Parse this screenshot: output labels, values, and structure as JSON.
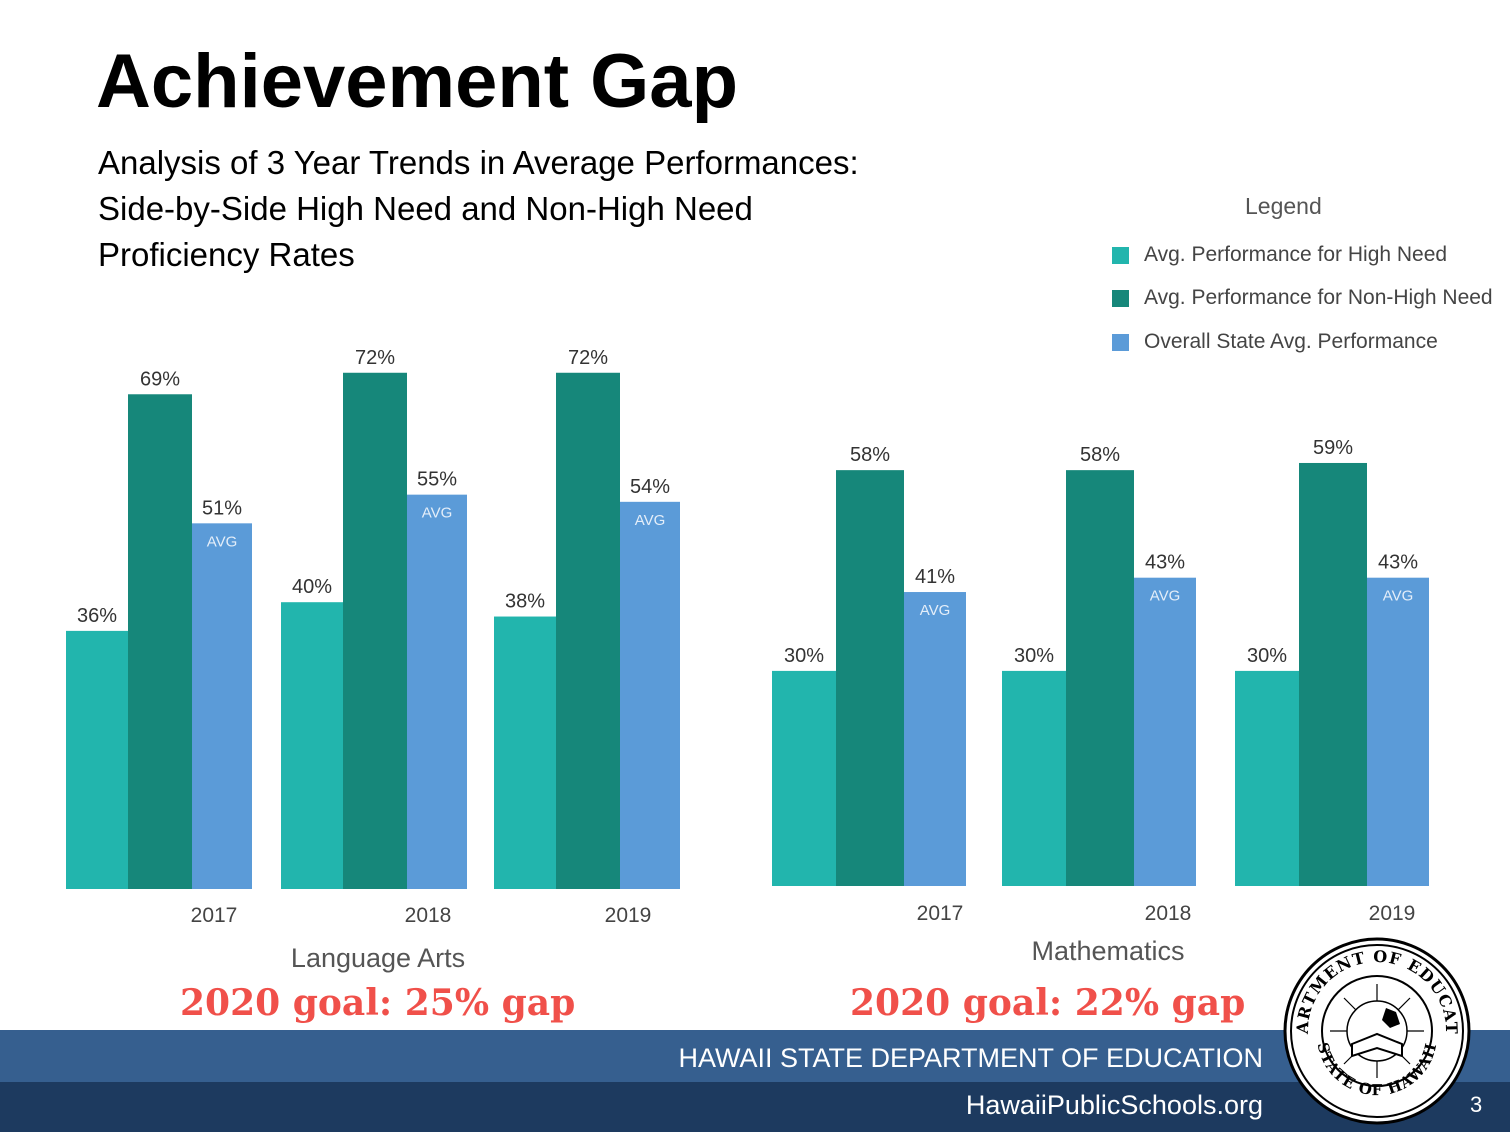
{
  "slide": {
    "title": "Achievement Gap",
    "subtitle_lines": [
      "Analysis of 3 Year Trends in Average Performances:",
      "Side-by-Side High Need and Non-High Need",
      "Proficiency Rates"
    ],
    "goals": [
      "2020 goal: 25% gap",
      "2020 goal: 22% gap"
    ],
    "footer": {
      "org": "HAWAII STATE DEPARTMENT OF EDUCATION",
      "url": "HawaiiPublicSchools.org",
      "page_number": "3"
    },
    "seal": {
      "top_text": "DEPARTMENT OF EDUCATION",
      "bottom_text": "STATE OF HAWAII"
    }
  },
  "colors": {
    "high_need": "#22b5ad",
    "non_high_need": "#16877a",
    "state_avg": "#5b9bd8",
    "goal_text": "#f0504a",
    "footer_top": "#365f8f",
    "footer_bottom": "#1d3a5f"
  },
  "chart_data": [
    {
      "type": "bar",
      "xlabel": "Language Arts",
      "categories": [
        "2017",
        "2018",
        "2019"
      ],
      "series": [
        {
          "name": "Avg. Performance for High Need",
          "values": [
            36,
            40,
            38
          ]
        },
        {
          "name": "Avg. Performance for Non-High Need",
          "values": [
            69,
            72,
            72
          ]
        },
        {
          "name": "Overall State Avg. Performance",
          "values": [
            51,
            55,
            54
          ],
          "bar_label": "AVG"
        }
      ],
      "value_labels": [
        [
          "36%",
          "40%",
          "38%"
        ],
        [
          "69%",
          "72%",
          "72%"
        ],
        [
          "51%",
          "55%",
          "54%"
        ]
      ],
      "ylim": [
        0,
        100
      ],
      "grid": false
    },
    {
      "type": "bar",
      "xlabel": "Mathematics",
      "categories": [
        "2017",
        "2018",
        "2019"
      ],
      "series": [
        {
          "name": "Avg. Performance for High Need",
          "values": [
            30,
            30,
            30
          ]
        },
        {
          "name": "Avg. Performance for Non-High Need",
          "values": [
            58,
            58,
            59
          ]
        },
        {
          "name": "Overall State Avg. Performance",
          "values": [
            41,
            43,
            43
          ],
          "bar_label": "AVG"
        }
      ],
      "value_labels": [
        [
          "30%",
          "30%",
          "30%"
        ],
        [
          "58%",
          "58%",
          "59%"
        ],
        [
          "41%",
          "43%",
          "43%"
        ]
      ],
      "ylim": [
        0,
        100
      ],
      "grid": false
    }
  ],
  "legend": {
    "title": "Legend",
    "placement": "top-right",
    "items": [
      {
        "label": "Avg. Performance for High Need",
        "color": "#22b5ad"
      },
      {
        "label": "Avg. Performance for Non-High Need",
        "color": "#16877a"
      },
      {
        "label": "Overall State Avg. Performance",
        "color": "#5b9bd8"
      }
    ]
  }
}
